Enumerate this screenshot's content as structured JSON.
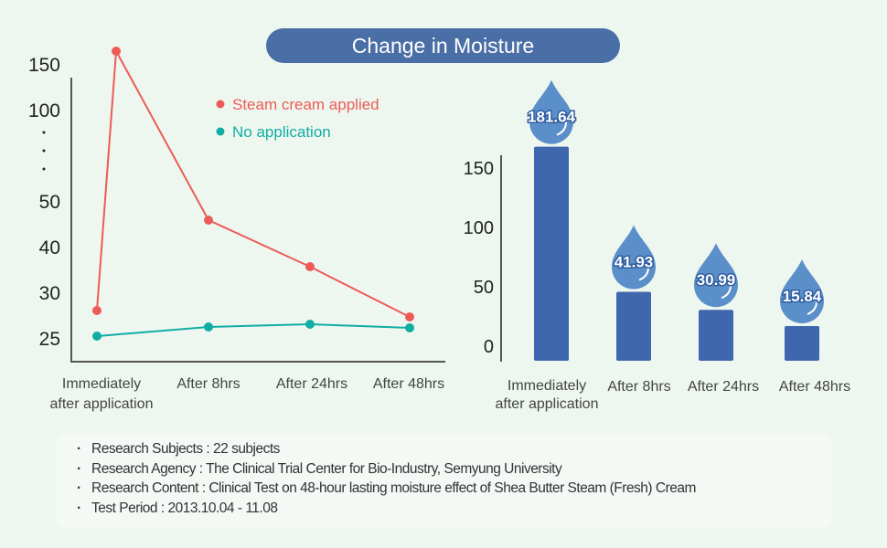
{
  "title": "Change in Moisture",
  "chart_data": [
    {
      "type": "line",
      "categories": [
        "Immediately after application",
        "After 8hrs",
        "After 24hrs",
        "After 48hrs"
      ],
      "yticks": [
        "25",
        "30",
        "40",
        "50",
        "100",
        "150"
      ],
      "axis_break": true,
      "series": [
        {
          "name": "Steam cream applied",
          "color": "#ec5b57",
          "values": [
            28,
            45.8,
            35.6,
            27.3
          ],
          "peak": 164
        },
        {
          "name": "No application",
          "color": "#10ada4",
          "values": [
            25.2,
            26.2,
            26.5,
            26.1
          ]
        }
      ],
      "legend": "top-right"
    },
    {
      "type": "bar",
      "categories": [
        "Immediately after application",
        "After 8hrs",
        "After 24hrs",
        "After 48hrs"
      ],
      "values": [
        181.64,
        41.93,
        30.99,
        15.84
      ],
      "labels": [
        "181.64",
        "41.93",
        "30.99",
        "15.84"
      ],
      "yticks": [
        "0",
        "50",
        "100",
        "150"
      ],
      "ylim": [
        0,
        200
      ],
      "color": "#3f67ae"
    }
  ],
  "info": [
    {
      "label": "Research Subjects",
      "value": "22 subjects"
    },
    {
      "label": "Research Agency",
      "value": "The Clinical Trial Center for Bio-Industry, Semyung University"
    },
    {
      "label": "Research Content",
      "value": "Clinical Test on  48-hour lasting moisture effect of Shea Butter Steam (Fresh) Cream"
    },
    {
      "label": "Test Period",
      "value": "2013.10.04  - 11.08"
    }
  ]
}
